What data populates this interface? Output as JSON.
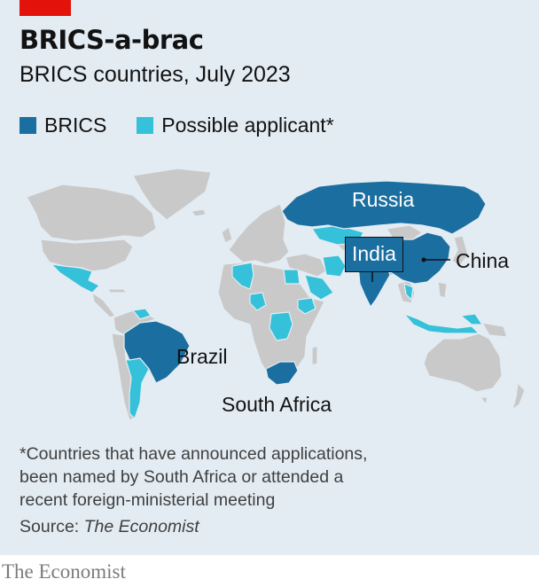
{
  "title": "BRICS-a-brac",
  "subtitle": "BRICS countries, July 2023",
  "legend": [
    {
      "label": "BRICS",
      "color": "#1b6ea0"
    },
    {
      "label": "Possible applicant*",
      "color": "#34c1d9"
    }
  ],
  "map": {
    "land_color": "#c9c9c9",
    "water_color": "#e3ecf3",
    "brics_labels": {
      "russia": "Russia",
      "india": "India",
      "china": "China",
      "brazil": "Brazil",
      "south_africa": "South Africa"
    }
  },
  "footnote": "*Countries that have announced applications, been named by South Africa or attended a recent foreign-ministerial meeting",
  "source_prefix": "Source: ",
  "source_name": "The Economist",
  "brand": "The Economist"
}
